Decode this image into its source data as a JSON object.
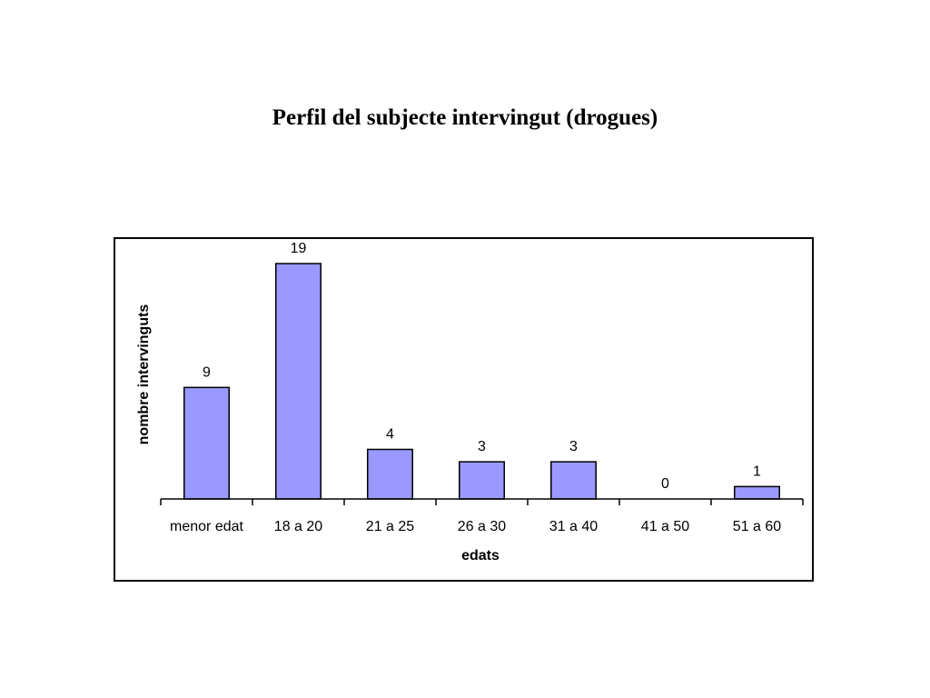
{
  "chart_data": {
    "type": "bar",
    "title": "Perfil del subjecte intervingut (drogues)",
    "xlabel": "edats",
    "ylabel": "nombre intervinguts",
    "categories": [
      "menor edat",
      "18 a 20",
      "21 a 25",
      "26 a 30",
      "31 a 40",
      "41 a 50",
      "51 a 60"
    ],
    "values": [
      9,
      19,
      4,
      3,
      3,
      0,
      1
    ],
    "data_labels": [
      "9",
      "19",
      "4",
      "3",
      "3",
      "0",
      "1"
    ],
    "ylim": [
      0,
      19
    ],
    "grid": false,
    "legend": "none",
    "bar_color": "#9999ff",
    "bar_edge_color": "#000000"
  }
}
